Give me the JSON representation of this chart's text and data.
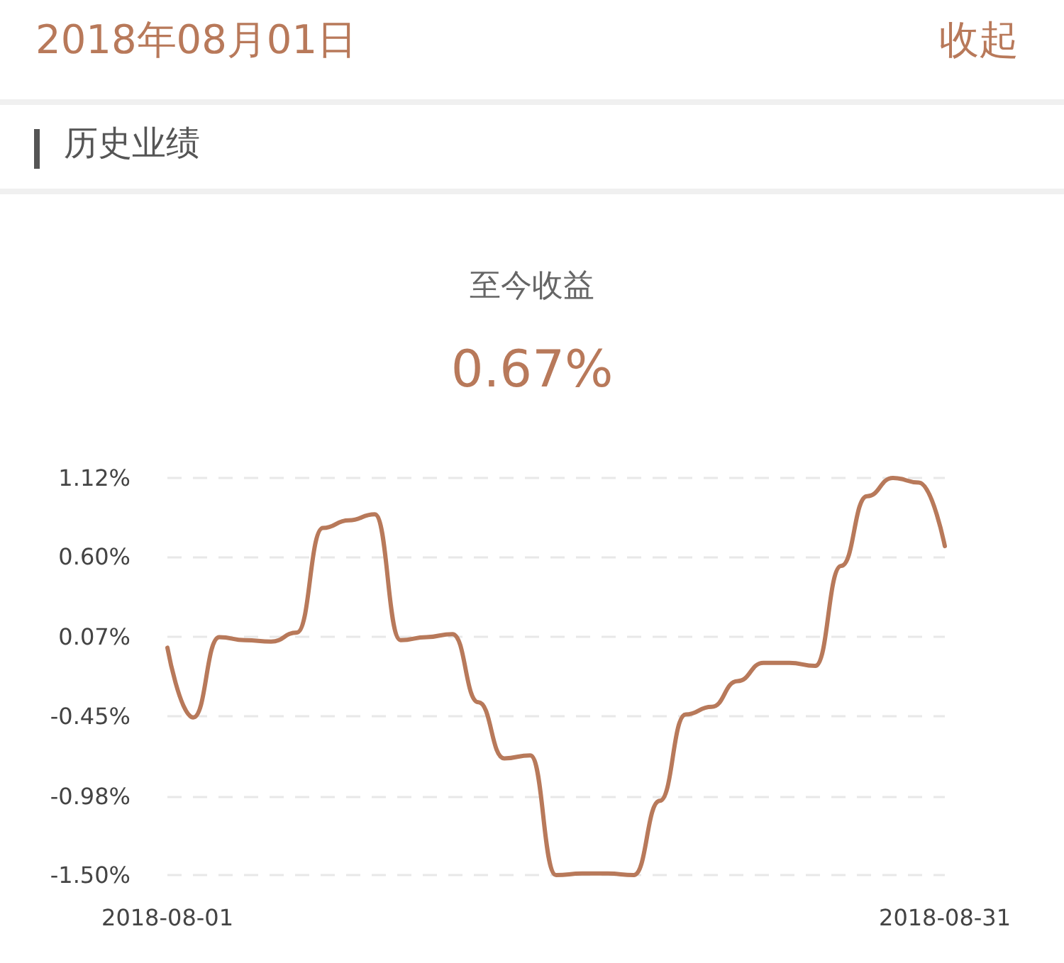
{
  "chart_data": {
    "type": "line",
    "title": "至今收益",
    "subtitle": "0.67%",
    "annotations": [
      "2018年08月01日",
      "收起",
      "历史业绩"
    ],
    "x": [
      "2018-08-01",
      "2018-08-02",
      "2018-08-03",
      "2018-08-04",
      "2018-08-05",
      "2018-08-06",
      "2018-08-07",
      "2018-08-08",
      "2018-08-09",
      "2018-08-10",
      "2018-08-11",
      "2018-08-12",
      "2018-08-13",
      "2018-08-14",
      "2018-08-15",
      "2018-08-16",
      "2018-08-17",
      "2018-08-18",
      "2018-08-19",
      "2018-08-20",
      "2018-08-21",
      "2018-08-22",
      "2018-08-23",
      "2018-08-24",
      "2018-08-25",
      "2018-08-26",
      "2018-08-27",
      "2018-08-28",
      "2018-08-29",
      "2018-08-30",
      "2018-08-31"
    ],
    "series": [
      {
        "color": "#b8795a",
        "values": [
          0.0,
          -0.46,
          0.07,
          0.05,
          0.04,
          0.1,
          0.79,
          0.84,
          0.88,
          0.05,
          0.07,
          0.09,
          -0.36,
          -0.73,
          -0.71,
          -1.5,
          -1.49,
          -1.49,
          -1.5,
          -1.01,
          -0.44,
          -0.39,
          -0.22,
          -0.1,
          -0.1,
          -0.12,
          0.54,
          1.0,
          1.12,
          1.09,
          0.67
        ]
      }
    ],
    "xlim": [
      "2018-08-01",
      "2018-08-31"
    ],
    "xticks": [
      {
        "value": "2018-08-01",
        "label": "2018-08-01"
      },
      {
        "value": "2018-08-31",
        "label": "2018-08-31"
      }
    ],
    "ylim": [
      -1.5,
      1.12
    ],
    "yticks": [
      {
        "value": -1.5,
        "label": "-1.50%"
      },
      {
        "value": -0.98,
        "label": "-0.98%"
      },
      {
        "value": -0.45,
        "label": "-0.45%"
      },
      {
        "value": 0.07,
        "label": "0.07%"
      },
      {
        "value": 0.6,
        "label": "0.60%"
      },
      {
        "value": 1.12,
        "label": "1.12%"
      }
    ],
    "grid": "y",
    "marker": "none",
    "line_style": "solid"
  }
}
